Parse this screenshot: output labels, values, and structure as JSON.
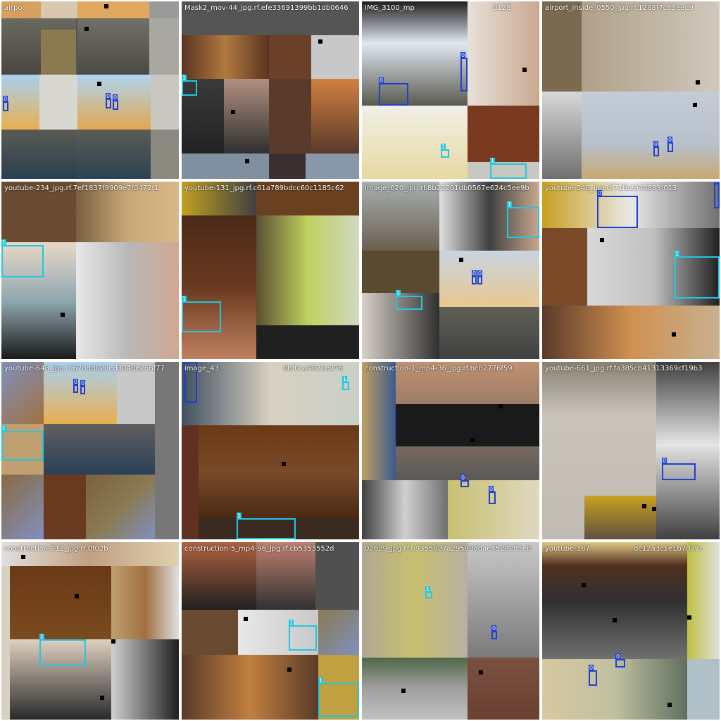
{
  "colors": {
    "class0": "#1f3fd0",
    "class1": "#20c8e0",
    "dot": "#000000"
  },
  "tiles": [
    {
      "caption": "airpo",
      "boxes": [
        {
          "label": "0",
          "cls": 0
        },
        {
          "label": "0",
          "cls": 0
        },
        {
          "label": "0",
          "cls": 0
        }
      ]
    },
    {
      "caption": "Mask2_mov-44_jpg.rf.efe33691399bb1db0646",
      "boxes": [
        {
          "label": "1",
          "cls": 1
        }
      ]
    },
    {
      "caption": "IMG_3100_mp",
      "caption2": "0128",
      "boxes": [
        {
          "label": "0",
          "cls": 0
        },
        {
          "label": "0",
          "cls": 0
        },
        {
          "label": "1",
          "cls": 1
        },
        {
          "label": "1",
          "cls": 1
        }
      ]
    },
    {
      "caption": "airport_inside_0550_jpg.rf.1288f7c63eed9",
      "boxes": [
        {
          "label": "0",
          "cls": 0
        },
        {
          "label": "0",
          "cls": 0
        }
      ]
    },
    {
      "caption": "youtube-234_jpg.rf.7ef1837f9909e7f0472f1",
      "boxes": [
        {
          "label": "1",
          "cls": 1
        }
      ]
    },
    {
      "caption": "youtube-131_jpg.rf.c61a789bdcc60c1185c62",
      "boxes": [
        {
          "label": "1",
          "cls": 1
        }
      ]
    },
    {
      "caption": "image_620_jpg.rf.8b25201db0567e624c5ee9b",
      "boxes": [
        {
          "label": "1",
          "cls": 1
        },
        {
          "label": "0",
          "cls": 0
        },
        {
          "label": "0",
          "cls": 0
        },
        {
          "label": "1",
          "cls": 1
        }
      ]
    },
    {
      "caption": "youtube-546_jpg.rf.71fb2940883f013",
      "boxes": [
        {
          "label": "0",
          "cls": 0
        },
        {
          "label": "0",
          "cls": 0
        },
        {
          "label": "1",
          "cls": 1
        }
      ]
    },
    {
      "caption": "youtube-648_jpg.rf.678dd020ed3048e268f77",
      "boxes": [
        {
          "label": "0",
          "cls": 0
        },
        {
          "label": "0",
          "cls": 0
        },
        {
          "label": "1",
          "cls": 1
        }
      ]
    },
    {
      "caption": "image_43",
      "caption2": "0bf0ca4821e276",
      "boxes": [
        {
          "label": "0",
          "cls": 0
        },
        {
          "label": "1",
          "cls": 1
        },
        {
          "label": "1",
          "cls": 1
        }
      ]
    },
    {
      "caption": "construction-1_mp4-36_jpg.rf.bcb2776f59",
      "boxes": [
        {
          "label": "0",
          "cls": 0
        },
        {
          "label": "0",
          "cls": 0
        }
      ]
    },
    {
      "caption": "youtube-661_jpg.rf.fa385cb41313369cf19b3",
      "boxes": [
        {
          "label": "0",
          "cls": 0
        }
      ]
    },
    {
      "caption": "construction-212_jpg.rf.0f02b",
      "boxes": [
        {
          "label": "1",
          "cls": 1
        }
      ]
    },
    {
      "caption": "construction-5_mp4-96_jpg.rf.cb5353552d",
      "boxes": [
        {
          "label": "1",
          "cls": 1
        },
        {
          "label": "1",
          "cls": 1
        }
      ]
    },
    {
      "caption": "02629_jpg.rf.b9355827a29589ddae4528281e8",
      "boxes": [
        {
          "label": "1",
          "cls": 1
        },
        {
          "label": "0",
          "cls": 0
        }
      ]
    },
    {
      "caption": "youtube-187",
      "caption2": "dc12a3c1e1b7d27c",
      "boxes": [
        {
          "label": "0",
          "cls": 0
        },
        {
          "label": "0",
          "cls": 0
        }
      ]
    }
  ]
}
